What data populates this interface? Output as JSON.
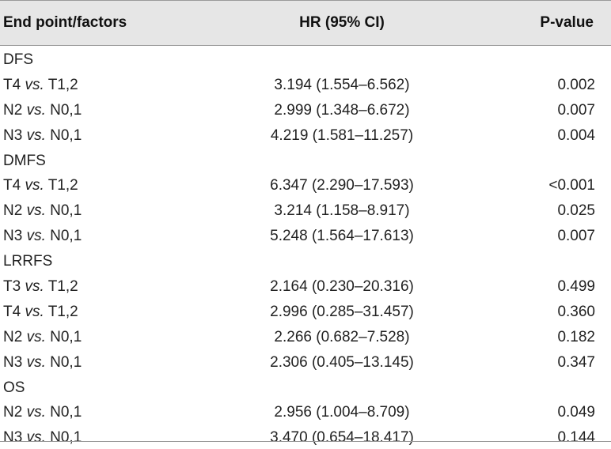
{
  "columns": {
    "factor": "End point/factors",
    "hr": "HR (95% CI)",
    "p": "P-value"
  },
  "vs_word": "vs.",
  "sections": [
    {
      "name": "DFS",
      "rows": [
        {
          "a": "T4",
          "b": "T1,2",
          "hr": "3.194 (1.554–6.562)",
          "p": "0.002"
        },
        {
          "a": "N2",
          "b": "N0,1",
          "hr": "2.999 (1.348–6.672)",
          "p": "0.007"
        },
        {
          "a": "N3",
          "b": "N0,1",
          "hr": "4.219 (1.581–11.257)",
          "p": "0.004"
        }
      ]
    },
    {
      "name": "DMFS",
      "rows": [
        {
          "a": "T4",
          "b": "T1,2",
          "hr": "6.347 (2.290–17.593)",
          "p": "<0.001"
        },
        {
          "a": "N2",
          "b": "N0,1",
          "hr": "3.214 (1.158–8.917)",
          "p": "0.025"
        },
        {
          "a": "N3",
          "b": "N0,1",
          "hr": "5.248 (1.564–17.613)",
          "p": "0.007"
        }
      ]
    },
    {
      "name": "LRRFS",
      "rows": [
        {
          "a": "T3",
          "b": "T1,2",
          "hr": "2.164 (0.230–20.316)",
          "p": "0.499"
        },
        {
          "a": "T4",
          "b": "T1,2",
          "hr": "2.996 (0.285–31.457)",
          "p": "0.360"
        },
        {
          "a": "N2",
          "b": "N0,1",
          "hr": "2.266 (0.682–7.528)",
          "p": "0.182"
        },
        {
          "a": "N3",
          "b": "N0,1",
          "hr": "2.306 (0.405–13.145)",
          "p": "0.347"
        }
      ]
    },
    {
      "name": "OS",
      "rows": [
        {
          "a": "N2",
          "b": "N0,1",
          "hr": "2.956 (1.004–8.709)",
          "p": "0.049"
        },
        {
          "a": "N3",
          "b": "N0,1",
          "hr": "3.470 (0.654–18.417)",
          "p": "0.144"
        }
      ]
    }
  ]
}
